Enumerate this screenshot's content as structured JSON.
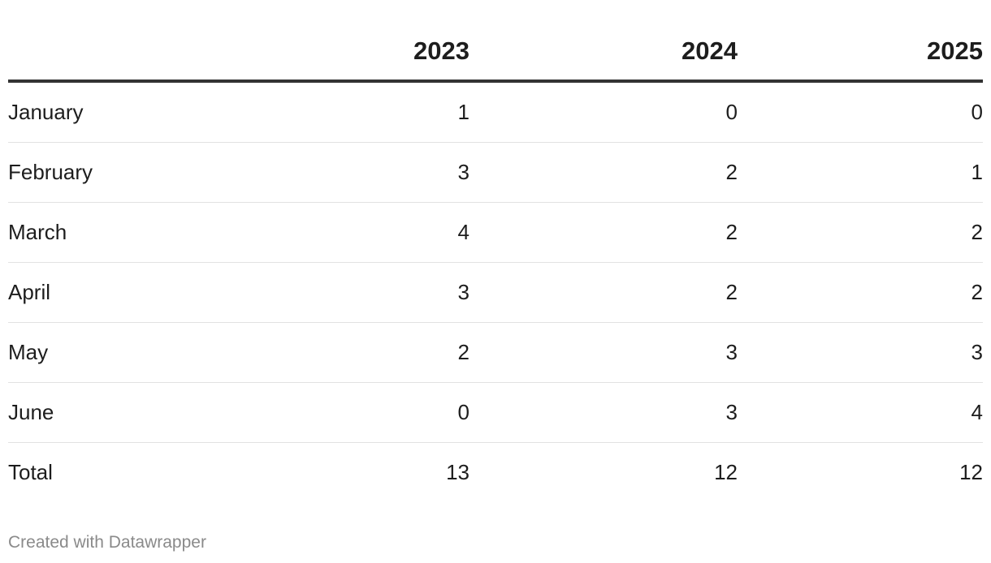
{
  "chart_data": {
    "type": "table",
    "columns": [
      "",
      "2023",
      "2024",
      "2025"
    ],
    "rows": [
      {
        "label": "January",
        "values": [
          "1",
          "0",
          "0"
        ]
      },
      {
        "label": "February",
        "values": [
          "3",
          "2",
          "1"
        ]
      },
      {
        "label": "March",
        "values": [
          "4",
          "2",
          "2"
        ]
      },
      {
        "label": "April",
        "values": [
          "3",
          "2",
          "2"
        ]
      },
      {
        "label": "May",
        "values": [
          "2",
          "3",
          "3"
        ]
      },
      {
        "label": "June",
        "values": [
          "0",
          "3",
          "4"
        ]
      },
      {
        "label": "Total",
        "values": [
          "13",
          "12",
          "12"
        ]
      }
    ]
  },
  "footer": {
    "credit": "Created with Datawrapper"
  },
  "colors": {
    "text": "#1d1d1d",
    "header_rule": "#333333",
    "row_rule": "#e2e2e2",
    "footer_text": "#8a8a8a"
  }
}
